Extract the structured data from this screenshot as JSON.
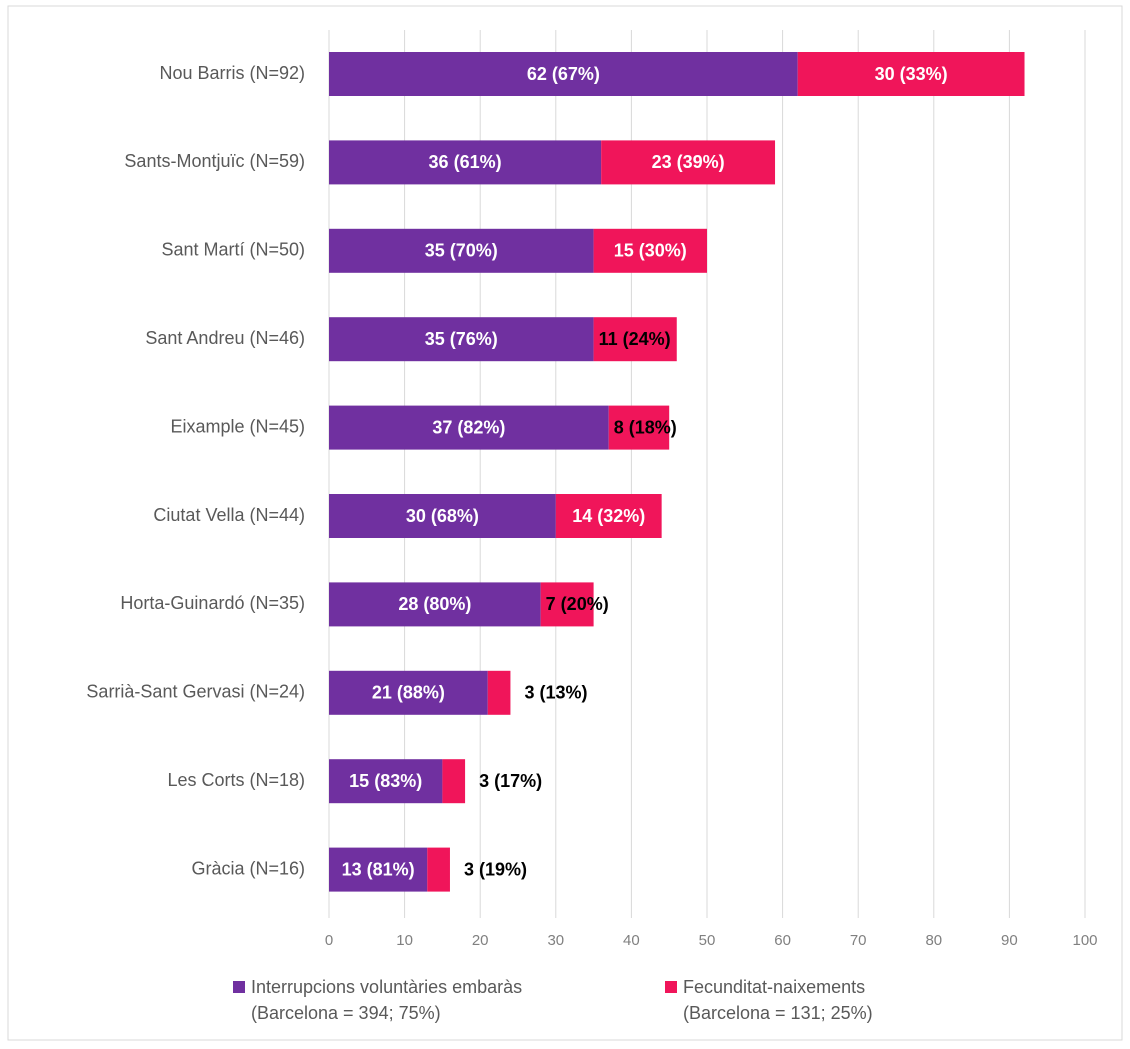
{
  "chart_data": {
    "type": "stacked_barh",
    "categories": [
      "Nou Barris (N=92)",
      "Sants-Montjuïc (N=59)",
      "Sant Martí (N=50)",
      "Sant Andreu (N=46)",
      "Eixample (N=45)",
      "Ciutat Vella (N=44)",
      "Horta-Guinardó (N=35)",
      "Sarrià-Sant Gervasi (N=24)",
      "Les Corts (N=18)",
      "Gràcia (N=16)"
    ],
    "series": [
      {
        "name": "Interrupcions voluntàries embaràs\n(Barcelona = 394; 75%)",
        "color": "#7030a0",
        "values": [
          62,
          36,
          35,
          35,
          37,
          30,
          28,
          21,
          15,
          13
        ],
        "value_labels": [
          "62 (67%)",
          "36 (61%)",
          "35 (70%)",
          "35 (76%)",
          "37 (82%)",
          "30 (68%)",
          "28 (80%)",
          "21 (88%)",
          "15 (83%)",
          "13 (81%)"
        ]
      },
      {
        "name": "Fecunditat-naixements\n(Barcelona = 131; 25%)",
        "color": "#f0155a",
        "values": [
          30,
          23,
          15,
          11,
          8,
          14,
          7,
          3,
          3,
          3
        ],
        "value_labels": [
          "30 (33%)",
          "23 (39%)",
          "15 (30%)",
          "11 (24%)",
          "8 (18%)",
          "14 (32%)",
          "7 (20%)",
          "3 (13%)",
          "3 (17%)",
          "3 (19%)"
        ]
      }
    ],
    "xlim": [
      0,
      100
    ],
    "xticks": [
      0,
      10,
      20,
      30,
      40,
      50,
      60,
      70,
      80,
      90,
      100
    ],
    "grid": true
  }
}
